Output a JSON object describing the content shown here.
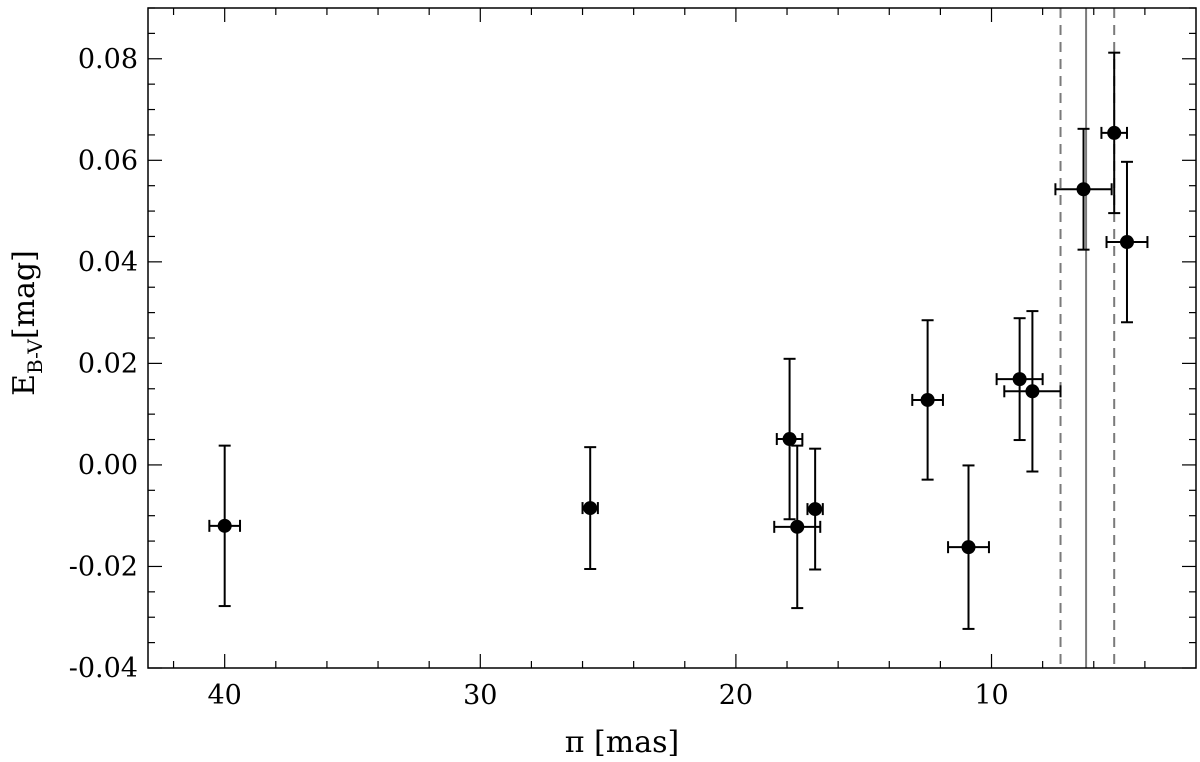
{
  "chart_data": {
    "type": "scatter",
    "title": "",
    "xlabel": "π [mas]",
    "ylabel_main": "E",
    "ylabel_sub": "B-V",
    "ylabel_unit": "[mag]",
    "xlim": [
      43,
      2
    ],
    "ylim": [
      -0.04,
      0.09
    ],
    "x_ticks": [
      40,
      30,
      20,
      10
    ],
    "x_tick_labels": [
      "40",
      "30",
      "20",
      "10"
    ],
    "y_ticks": [
      -0.04,
      -0.02,
      0.0,
      0.02,
      0.04,
      0.06,
      0.08
    ],
    "y_tick_labels": [
      "-0.04",
      "-0.02",
      "0.00",
      "0.02",
      "0.04",
      "0.06",
      "0.08"
    ],
    "grid": false,
    "vertical_lines": [
      {
        "x": 6.3,
        "style": "solid",
        "color": "#7a7a7a"
      },
      {
        "x": 7.3,
        "style": "dashed",
        "color": "#7a7a7a"
      },
      {
        "x": 5.2,
        "style": "dashed",
        "color": "#7a7a7a"
      }
    ],
    "points": [
      {
        "x": 40.0,
        "xerr": 0.6,
        "y": -0.012,
        "yerr": 0.0158
      },
      {
        "x": 25.7,
        "xerr": 0.3,
        "y": -0.0085,
        "yerr": 0.012
      },
      {
        "x": 17.9,
        "xerr": 0.5,
        "y": 0.0051,
        "yerr": 0.0158
      },
      {
        "x": 17.6,
        "xerr": 0.9,
        "y": -0.0122,
        "yerr": 0.016
      },
      {
        "x": 16.9,
        "xerr": 0.3,
        "y": -0.0087,
        "yerr": 0.0119
      },
      {
        "x": 12.5,
        "xerr": 0.6,
        "y": 0.0128,
        "yerr": 0.0157
      },
      {
        "x": 10.9,
        "xerr": 0.8,
        "y": -0.0162,
        "yerr": 0.0161
      },
      {
        "x": 8.9,
        "xerr": 0.9,
        "y": 0.0169,
        "yerr": 0.012
      },
      {
        "x": 8.4,
        "xerr": 1.1,
        "y": 0.0145,
        "yerr": 0.0158
      },
      {
        "x": 6.4,
        "xerr": 1.1,
        "y": 0.0543,
        "yerr": 0.0119
      },
      {
        "x": 5.2,
        "xerr": 0.5,
        "y": 0.0654,
        "yerr": 0.0158
      },
      {
        "x": 4.7,
        "xerr": 0.8,
        "y": 0.0439,
        "yerr": 0.0158
      }
    ],
    "colors": {
      "points": "#000000",
      "reference_lines": "#7a7a7a",
      "frame": "#000000"
    }
  }
}
